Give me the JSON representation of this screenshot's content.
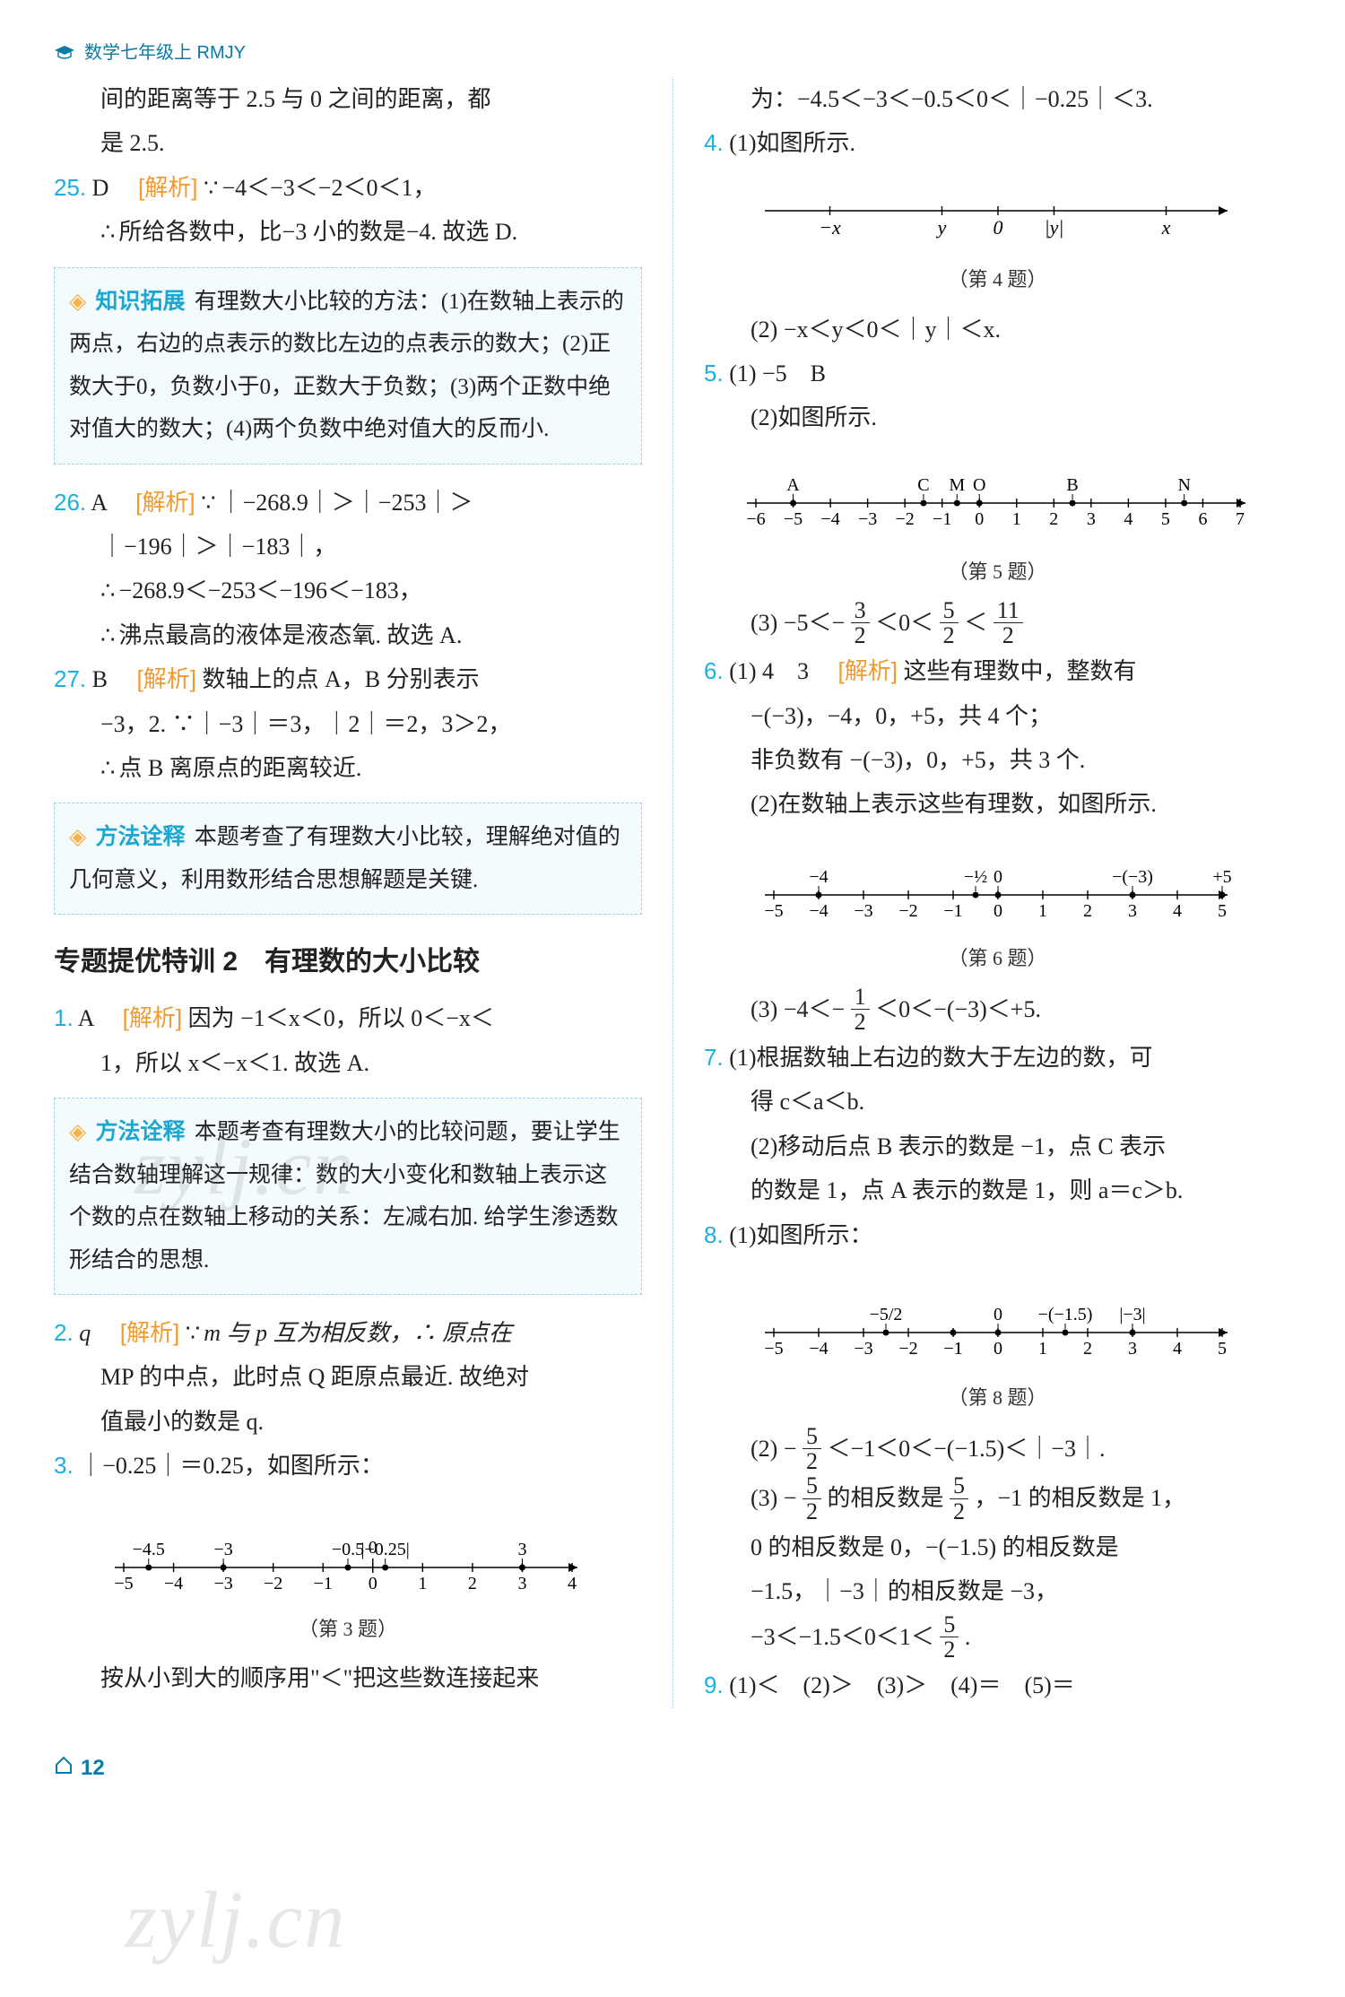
{
  "header": {
    "label": "数学七年级上 RMJY"
  },
  "footer": {
    "page_number": "12"
  },
  "watermark_text": "zylj.cn",
  "colors": {
    "question_number": "#1bb0e0",
    "analysis_tag": "#f29a2e",
    "callout_border": "#9cd3e4",
    "callout_bg": "#f4fbfd",
    "callout_title": "#1ca6d1",
    "header_text": "#0a7aa6",
    "column_divider": "#8fbfd0",
    "body_text": "#222222"
  },
  "tags": {
    "analysis": "解析",
    "knowledge_ext": "知识拓展",
    "method_note": "方法诠释"
  },
  "left": {
    "cont_a": "间的距离等于 2.5 与 0 之间的距离，都",
    "cont_b": "是 2.5.",
    "q25_num": "25.",
    "q25_ans": "D",
    "q25_a": "−4＜−3＜−2＜0＜1，",
    "q25_b": "所给各数中，比−3 小的数是−4. 故选 D.",
    "box1": "有理数大小比较的方法：(1)在数轴上表示的两点，右边的点表示的数比左边的点表示的数大；(2)正数大于0，负数小于0，正数大于负数；(3)两个正数中绝对值大的数大；(4)两个负数中绝对值大的反而小.",
    "q26_num": "26.",
    "q26_ans": "A",
    "q26_a": "｜−268.9｜＞｜−253｜＞",
    "q26_b": "｜−196｜＞｜−183｜，",
    "q26_c": "−268.9＜−253＜−196＜−183，",
    "q26_d": "沸点最高的液体是液态氧. 故选 A.",
    "q27_num": "27.",
    "q27_ans": "B",
    "q27_a": "数轴上的点 A，B 分别表示",
    "q27_b": "−3，2. ∵｜−3｜＝3，｜2｜＝2，3＞2，",
    "q27_c": "点 B 离原点的距离较近.",
    "box2": "本题考查了有理数大小比较，理解绝对值的几何意义，利用数形结合思想解题是关键.",
    "section": "专题提优特训 2　有理数的大小比较",
    "s1_num": "1.",
    "s1_ans": "A",
    "s1_a": "因为 −1＜x＜0，所以 0＜−x＜",
    "s1_b": "1，所以 x＜−x＜1. 故选 A.",
    "box3": "本题考查有理数大小的比较问题，要让学生结合数轴理解这一规律：数的大小变化和数轴上表示这个数的点在数轴上移动的关系：左减右加. 给学生渗透数形结合的思想.",
    "s2_num": "2.",
    "s2_ans": "q",
    "s2_a": "m 与 p 互为相反数，∴ 原点在",
    "s2_b": "MP 的中点，此时点 Q 距原点最近. 故绝对",
    "s2_c": "值最小的数是 q.",
    "s3_num": "3.",
    "s3_a": "｜−0.25｜＝0.25，如图所示：",
    "s3_caption": "（第 3 题）",
    "s3_after": "按从小到大的顺序用\"＜\"把这些数连接起来",
    "diagram3": {
      "type": "number-line",
      "x_min": -5,
      "x_max": 4,
      "ticks": [
        -5,
        -4,
        -3,
        -2,
        -1,
        0,
        1,
        2,
        3,
        4
      ],
      "above_points": [
        {
          "x": -4.5,
          "label": "−4.5"
        },
        {
          "x": -3,
          "label": "−3"
        },
        {
          "x": -0.5,
          "label": "−0.5"
        },
        {
          "x": 0.25,
          "label": "|−0.25|"
        },
        {
          "x": 3,
          "label": "3"
        }
      ],
      "special_tick": {
        "x": 0,
        "label": "0"
      },
      "line_color": "#000000",
      "label_fontsize": 20
    }
  },
  "right": {
    "cont": "为：−4.5＜−3＜−0.5＜0＜｜−0.25｜＜3.",
    "q4_num": "4.",
    "q4_a": "(1)如图所示.",
    "q4_b": "(2) −x＜y＜0＜｜y｜＜x.",
    "q4_caption": "（第 4 题）",
    "diagram4": {
      "type": "number-line",
      "x_min": -4,
      "x_max": 4,
      "ticks": [],
      "points": [
        {
          "x": -3,
          "label": "−x"
        },
        {
          "x": -1,
          "label": "y"
        },
        {
          "x": 0,
          "label": "0"
        },
        {
          "x": 1,
          "label": "|y|"
        },
        {
          "x": 3,
          "label": "x"
        }
      ],
      "line_color": "#000000",
      "label_fontsize": 22
    },
    "q5_num": "5.",
    "q5_a": "(1) −5　B",
    "q5_b": "(2)如图所示.",
    "q5_caption": "（第 5 题）",
    "q5_d_pre": "(3) −5＜−",
    "q5_d_mid": "＜0＜",
    "q5_d_mid2": "＜",
    "diagram5": {
      "type": "number-line",
      "x_min": -6,
      "x_max": 7,
      "ticks": [
        -6,
        -5,
        -4,
        -3,
        -2,
        -1,
        0,
        1,
        2,
        3,
        4,
        5,
        6,
        7
      ],
      "above_points": [
        {
          "x": -5,
          "label": "A"
        },
        {
          "x": -1.5,
          "label": "C"
        },
        {
          "x": -0.6,
          "label": "M"
        },
        {
          "x": 0,
          "label": "O"
        },
        {
          "x": 2.5,
          "label": "B"
        },
        {
          "x": 5.5,
          "label": "N"
        }
      ],
      "line_color": "#000000",
      "label_fontsize": 20
    },
    "q6_num": "6.",
    "q6_a": "(1) 4　3　",
    "q6_b": "这些有理数中，整数有",
    "q6_c": "−(−3)，−4，0，+5，共 4 个；",
    "q6_d": "非负数有 −(−3)，0，+5，共 3 个.",
    "q6_e": "(2)在数轴上表示这些有理数，如图所示.",
    "q6_caption": "（第 6 题）",
    "q6_g_pre": "(3) −4＜−",
    "q6_g_mid": "＜0＜−(−3)＜+5.",
    "diagram6": {
      "type": "number-line",
      "x_min": -5,
      "x_max": 5,
      "ticks": [
        -5,
        -4,
        -3,
        -2,
        -1,
        0,
        1,
        2,
        3,
        4,
        5
      ],
      "above_points": [
        {
          "x": -4,
          "label": "−4"
        },
        {
          "x": -0.5,
          "label": "−½"
        },
        {
          "x": 0,
          "label": "0"
        },
        {
          "x": 3,
          "label": "−(−3)"
        },
        {
          "x": 5,
          "label": "+5"
        }
      ],
      "line_color": "#000000",
      "label_fontsize": 20
    },
    "q7_num": "7.",
    "q7_a": "(1)根据数轴上右边的数大于左边的数，可",
    "q7_b": "得 c＜a＜b.",
    "q7_c": "(2)移动后点 B 表示的数是 −1，点 C 表示",
    "q7_d": "的数是 1，点 A 表示的数是 1，则 a＝c＞b.",
    "q8_num": "8.",
    "q8_a": "(1)如图所示：",
    "q8_caption": "（第 8 题）",
    "q8_c_pre": "(2) −",
    "q8_c_post": "＜−1＜0＜−(−1.5)＜｜−3｜.",
    "q8_d_pre": "(3) −",
    "q8_d_mid": " 的相反数是 ",
    "q8_d_post": "，−1 的相反数是 1，",
    "q8_e": "0 的相反数是 0，−(−1.5) 的相反数是",
    "q8_f": "−1.5，｜−3｜的相反数是 −3，",
    "q8_g_pre": "−3＜−1.5＜0＜1＜",
    "q8_g_post": ".",
    "diagram8": {
      "type": "number-line",
      "x_min": -5,
      "x_max": 5,
      "ticks": [
        -5,
        -4,
        -3,
        -2,
        -1,
        0,
        1,
        2,
        3,
        4,
        5
      ],
      "above_points": [
        {
          "x": -2.5,
          "label": "−5/2"
        },
        {
          "x": -1,
          "label": "−1",
          "below": true
        },
        {
          "x": 0,
          "label": "0"
        },
        {
          "x": 1.5,
          "label": "−(−1.5)"
        },
        {
          "x": 3,
          "label": "|−3|"
        }
      ],
      "line_color": "#000000",
      "label_fontsize": 20
    },
    "q9_num": "9.",
    "q9_a": "(1)＜　(2)＞　(3)＞　(4)＝　(5)＝"
  },
  "fractions": {
    "three_two": {
      "n": "3",
      "d": "2"
    },
    "five_two": {
      "n": "5",
      "d": "2"
    },
    "eleven_two": {
      "n": "11",
      "d": "2"
    },
    "one_two": {
      "n": "1",
      "d": "2"
    }
  }
}
